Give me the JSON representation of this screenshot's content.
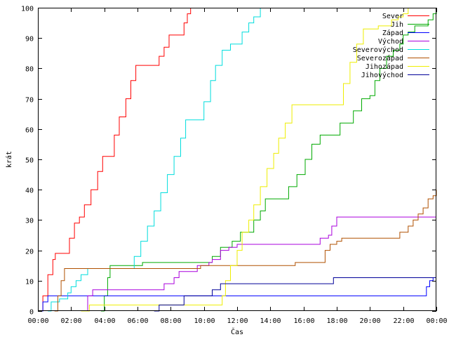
{
  "chart_data": {
    "type": "line",
    "xlabel": "Čas",
    "ylabel": "krát",
    "xlim": [
      0,
      24
    ],
    "ylim": [
      0,
      100
    ],
    "grid": false,
    "legend_position": "top-right",
    "x_ticks": [
      {
        "value": 0,
        "label": "00:00"
      },
      {
        "value": 2,
        "label": "02:00"
      },
      {
        "value": 4,
        "label": "04:00"
      },
      {
        "value": 6,
        "label": "06:00"
      },
      {
        "value": 8,
        "label": "08:00"
      },
      {
        "value": 10,
        "label": "10:00"
      },
      {
        "value": 12,
        "label": "12:00"
      },
      {
        "value": 14,
        "label": "14:00"
      },
      {
        "value": 16,
        "label": "16:00"
      },
      {
        "value": 18,
        "label": "18:00"
      },
      {
        "value": 20,
        "label": "20:00"
      },
      {
        "value": 22,
        "label": "22:00"
      },
      {
        "value": 24,
        "label": "00:00"
      }
    ],
    "y_ticks": [
      0,
      10,
      20,
      30,
      40,
      50,
      60,
      70,
      80,
      90,
      100
    ],
    "series": [
      {
        "name": "Sever",
        "color": "#ff0000",
        "points": [
          [
            0,
            0
          ],
          [
            0.3,
            5
          ],
          [
            0.6,
            12
          ],
          [
            0.9,
            17
          ],
          [
            1.05,
            19
          ],
          [
            1.7,
            19
          ],
          [
            1.9,
            24
          ],
          [
            2.2,
            29
          ],
          [
            2.5,
            31
          ],
          [
            2.8,
            35
          ],
          [
            3.2,
            40
          ],
          [
            3.6,
            46
          ],
          [
            3.9,
            51
          ],
          [
            4.3,
            51
          ],
          [
            4.6,
            58
          ],
          [
            4.9,
            64
          ],
          [
            5.3,
            70
          ],
          [
            5.6,
            76
          ],
          [
            5.9,
            81
          ],
          [
            6.0,
            81
          ],
          [
            7.0,
            81
          ],
          [
            7.3,
            84
          ],
          [
            7.6,
            87
          ],
          [
            7.9,
            91
          ],
          [
            8.6,
            91
          ],
          [
            8.8,
            95
          ],
          [
            9.0,
            98
          ],
          [
            9.2,
            100
          ]
        ]
      },
      {
        "name": "Jih",
        "color": "#00aa00",
        "points": [
          [
            3.8,
            0
          ],
          [
            4.0,
            5
          ],
          [
            4.2,
            11
          ],
          [
            4.35,
            15
          ],
          [
            6.2,
            15
          ],
          [
            6.3,
            16
          ],
          [
            10.3,
            16
          ],
          [
            10.5,
            18
          ],
          [
            11.0,
            21
          ],
          [
            11.7,
            23
          ],
          [
            12.2,
            26
          ],
          [
            12.8,
            26
          ],
          [
            13.0,
            30
          ],
          [
            13.4,
            33
          ],
          [
            13.7,
            37
          ],
          [
            14.8,
            37
          ],
          [
            15.1,
            41
          ],
          [
            15.6,
            45
          ],
          [
            16.1,
            50
          ],
          [
            16.5,
            55
          ],
          [
            17.0,
            58
          ],
          [
            17.5,
            58
          ],
          [
            18.0,
            58
          ],
          [
            18.2,
            62
          ],
          [
            18.8,
            62
          ],
          [
            19.0,
            66
          ],
          [
            19.5,
            70
          ],
          [
            20.0,
            71
          ],
          [
            20.3,
            76
          ],
          [
            20.6,
            80
          ],
          [
            21.0,
            84
          ],
          [
            21.4,
            86
          ],
          [
            21.8,
            88
          ],
          [
            22.0,
            91
          ],
          [
            22.3,
            92
          ],
          [
            22.7,
            94
          ],
          [
            23.3,
            94
          ],
          [
            23.5,
            96
          ],
          [
            23.8,
            98
          ],
          [
            24,
            100
          ]
        ]
      },
      {
        "name": "Západ",
        "color": "#0000ff",
        "points": [
          [
            0,
            0
          ],
          [
            0.3,
            3
          ],
          [
            0.6,
            5
          ],
          [
            1.2,
            5
          ],
          [
            1.5,
            5
          ],
          [
            23.2,
            5
          ],
          [
            23.4,
            8
          ],
          [
            23.6,
            10
          ],
          [
            23.8,
            11
          ],
          [
            24,
            11
          ]
        ]
      },
      {
        "name": "Východ",
        "color": "#aa00dd",
        "points": [
          [
            2.8,
            0
          ],
          [
            3.0,
            5
          ],
          [
            3.3,
            7
          ],
          [
            7.3,
            7
          ],
          [
            7.6,
            9
          ],
          [
            8.2,
            11
          ],
          [
            8.5,
            13
          ],
          [
            9.4,
            13
          ],
          [
            9.6,
            15
          ],
          [
            10.3,
            16
          ],
          [
            10.5,
            17
          ],
          [
            11.0,
            20
          ],
          [
            11.5,
            21
          ],
          [
            12.0,
            22
          ],
          [
            16.8,
            22
          ],
          [
            17.0,
            24
          ],
          [
            17.5,
            25
          ],
          [
            17.7,
            28
          ],
          [
            18.0,
            31
          ],
          [
            24,
            31
          ]
        ]
      },
      {
        "name": "Severovýchod",
        "color": "#00dddd",
        "points": [
          [
            0.6,
            0
          ],
          [
            0.8,
            3
          ],
          [
            1.3,
            4
          ],
          [
            1.8,
            6
          ],
          [
            2.0,
            8
          ],
          [
            2.3,
            10
          ],
          [
            2.6,
            12
          ],
          [
            3.0,
            14
          ],
          [
            5.6,
            14
          ],
          [
            5.8,
            18
          ],
          [
            6.2,
            23
          ],
          [
            6.6,
            28
          ],
          [
            7.0,
            33
          ],
          [
            7.4,
            39
          ],
          [
            7.8,
            45
          ],
          [
            8.2,
            51
          ],
          [
            8.6,
            57
          ],
          [
            8.9,
            63
          ],
          [
            9.5,
            63
          ],
          [
            10.0,
            69
          ],
          [
            10.4,
            76
          ],
          [
            10.7,
            81
          ],
          [
            11.1,
            86
          ],
          [
            11.6,
            88
          ],
          [
            12.1,
            88
          ],
          [
            12.3,
            92
          ],
          [
            12.7,
            95
          ],
          [
            13.0,
            97
          ],
          [
            13.4,
            100
          ]
        ]
      },
      {
        "name": "Severozápad",
        "color": "#b05000",
        "points": [
          [
            1.0,
            0
          ],
          [
            1.2,
            5
          ],
          [
            1.4,
            10
          ],
          [
            1.6,
            14
          ],
          [
            9.5,
            14
          ],
          [
            9.8,
            15
          ],
          [
            15.2,
            15
          ],
          [
            15.5,
            16
          ],
          [
            16.9,
            16
          ],
          [
            17.3,
            20
          ],
          [
            17.6,
            22
          ],
          [
            18.0,
            23
          ],
          [
            18.3,
            24
          ],
          [
            21.5,
            24
          ],
          [
            21.8,
            26
          ],
          [
            22.3,
            28
          ],
          [
            22.6,
            30
          ],
          [
            22.9,
            32
          ],
          [
            23.2,
            34
          ],
          [
            23.5,
            37
          ],
          [
            23.8,
            38
          ],
          [
            24,
            40
          ]
        ]
      },
      {
        "name": "Jihozápad",
        "color": "#eeee00",
        "points": [
          [
            2.6,
            0
          ],
          [
            3.1,
            2
          ],
          [
            10.9,
            2
          ],
          [
            11.1,
            5
          ],
          [
            11.3,
            10
          ],
          [
            11.6,
            15
          ],
          [
            12.0,
            20
          ],
          [
            12.3,
            26
          ],
          [
            12.7,
            30
          ],
          [
            13.0,
            35
          ],
          [
            13.4,
            41
          ],
          [
            13.8,
            47
          ],
          [
            14.2,
            52
          ],
          [
            14.5,
            57
          ],
          [
            14.9,
            62
          ],
          [
            15.3,
            68
          ],
          [
            18.0,
            68
          ],
          [
            18.4,
            75
          ],
          [
            18.8,
            82
          ],
          [
            19.2,
            88
          ],
          [
            19.6,
            93
          ],
          [
            20.2,
            93
          ],
          [
            20.5,
            94
          ],
          [
            21.0,
            94
          ],
          [
            21.3,
            96
          ],
          [
            21.7,
            97
          ],
          [
            22.0,
            98
          ],
          [
            22.3,
            100
          ]
        ]
      },
      {
        "name": "Jihovýchod",
        "color": "#000099",
        "points": [
          [
            7.0,
            0
          ],
          [
            7.3,
            2
          ],
          [
            8.6,
            2
          ],
          [
            8.8,
            5
          ],
          [
            10.0,
            5
          ],
          [
            10.5,
            7
          ],
          [
            11.0,
            9
          ],
          [
            17.5,
            9
          ],
          [
            17.8,
            11
          ],
          [
            24,
            11
          ]
        ]
      }
    ]
  }
}
